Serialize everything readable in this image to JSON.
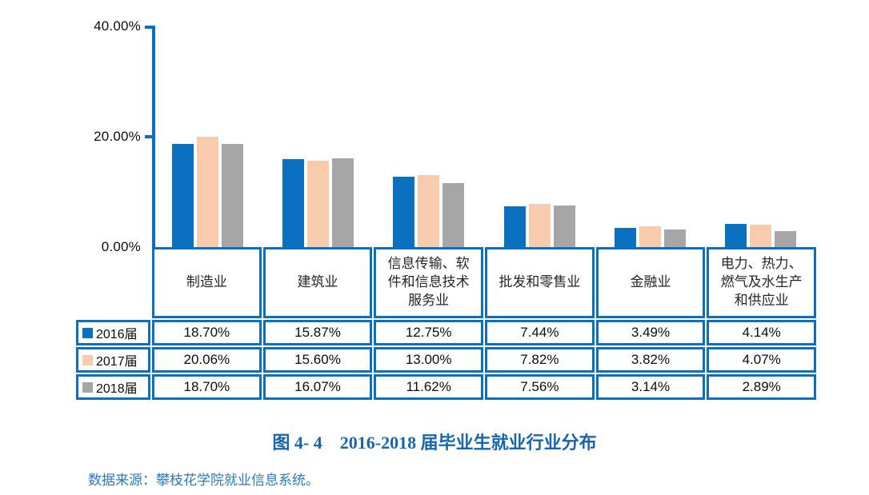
{
  "chart_data": {
    "type": "bar",
    "title": "图 4- 4　2016-2018 届毕业生就业行业分布",
    "categories": [
      "制造业",
      "建筑业",
      "信息传输、软件和信息技术服务业",
      "批发和零售业",
      "金融业",
      "电力、热力、燃气及水生产和供应业"
    ],
    "series": [
      {
        "name": "2016届",
        "color": "#0b70c0",
        "values": [
          18.7,
          15.87,
          12.75,
          7.44,
          3.49,
          4.14
        ]
      },
      {
        "name": "2017届",
        "color": "#f8cbad",
        "values": [
          20.06,
          15.6,
          13.0,
          7.82,
          3.82,
          4.07
        ]
      },
      {
        "name": "2018届",
        "color": "#a6a6a6",
        "values": [
          18.7,
          16.07,
          11.62,
          7.56,
          3.14,
          2.89
        ]
      }
    ],
    "yticks": [
      "40.00%",
      "20.00%",
      "0.00%"
    ],
    "ylim": [
      0,
      40
    ],
    "grid": false,
    "legend_position": "table-rows-left",
    "value_format": "0.00%",
    "axis_color": "#0b70c0",
    "table_border_color": "#0b70c0"
  },
  "source_note": "数据来源：攀枝花学院就业信息系统。",
  "colors": {
    "series_2016": "#0b70c0",
    "series_2017": "#f8cbad",
    "series_2018": "#a6a6a6",
    "axis_and_table_blue": "#0b70c0",
    "caption_blue": "#1565b0",
    "source_blue": "#2a7abf",
    "background": "#ffffff"
  }
}
